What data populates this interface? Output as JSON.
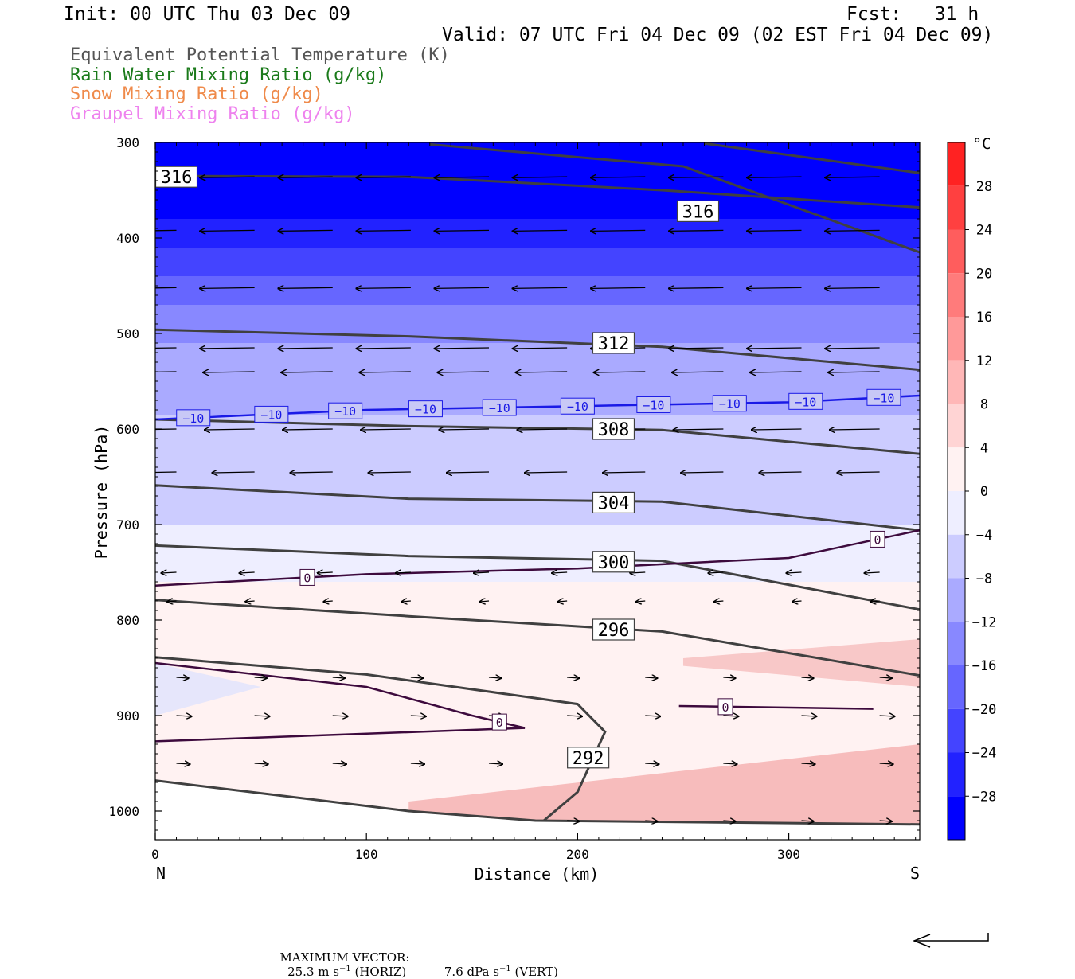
{
  "header": {
    "init": "Init: 00 UTC Thu 03 Dec 09",
    "fcst": "Fcst:   31 h",
    "valid": "Valid: 07 UTC Fri 04 Dec 09 (02 EST Fri 04 Dec 09)"
  },
  "legend": [
    {
      "label": "Equivalent Potential Temperature (K)",
      "color": "#555555"
    },
    {
      "label": "Rain Water Mixing Ratio (g/kg)",
      "color": "#1a7a1a"
    },
    {
      "label": "Snow Mixing Ratio (g/kg)",
      "color": "#ef8a4a"
    },
    {
      "label": "Graupel Mixing Ratio (g/kg)",
      "color": "#ee82ee"
    }
  ],
  "chart_data": {
    "type": "cross-section",
    "xlabel": "Distance (km)",
    "ylabel": "Pressure (hPa)",
    "x_ticks": [
      "0",
      "100",
      "200",
      "300"
    ],
    "x_end_labels": {
      "left": "N",
      "right": "S"
    },
    "y_ticks": [
      "300",
      "400",
      "500",
      "600",
      "700",
      "800",
      "900",
      "1000"
    ],
    "xlim": [
      0,
      362
    ],
    "ylim": [
      300,
      1030
    ],
    "y_inverted": true,
    "colorbar": {
      "unit": "°C",
      "labels": [
        "28",
        "24",
        "20",
        "16",
        "12",
        "8",
        "4",
        "0",
        "−4",
        "−8",
        "−12",
        "−16",
        "−20",
        "−24",
        "−28"
      ],
      "range": [
        -32,
        32
      ],
      "step": 4
    },
    "theta_e_contours": [
      {
        "label": "316",
        "label_pos": [
          10,
          336
        ],
        "points": [
          [
            0,
            335
          ],
          [
            120,
            336
          ],
          [
            240,
            350
          ],
          [
            362,
            368
          ]
        ]
      },
      {
        "label": "316",
        "label_pos": [
          257,
          372
        ],
        "points": [
          [
            130,
            302
          ],
          [
            250,
            325
          ],
          [
            362,
            415
          ]
        ]
      },
      {
        "label": "",
        "points": [
          [
            260,
            301
          ],
          [
            362,
            332
          ]
        ]
      },
      {
        "label": "312",
        "label_pos": [
          217,
          510
        ],
        "points": [
          [
            0,
            496
          ],
          [
            120,
            503
          ],
          [
            240,
            514
          ],
          [
            362,
            538
          ]
        ]
      },
      {
        "label": "308",
        "label_pos": [
          217,
          600
        ],
        "points": [
          [
            0,
            590
          ],
          [
            120,
            597
          ],
          [
            240,
            601
          ],
          [
            362,
            626
          ]
        ]
      },
      {
        "label": "304",
        "label_pos": [
          217,
          677
        ],
        "points": [
          [
            0,
            659
          ],
          [
            120,
            673
          ],
          [
            240,
            676
          ],
          [
            362,
            706
          ]
        ]
      },
      {
        "label": "300",
        "label_pos": [
          217,
          739
        ],
        "points": [
          [
            0,
            722
          ],
          [
            120,
            733
          ],
          [
            240,
            738
          ],
          [
            362,
            789
          ]
        ]
      },
      {
        "label": "296",
        "label_pos": [
          217,
          810
        ],
        "points": [
          [
            0,
            779
          ],
          [
            120,
            796
          ],
          [
            240,
            812
          ],
          [
            362,
            858
          ]
        ]
      },
      {
        "label": "292",
        "label_pos": [
          205,
          944
        ],
        "points": [
          [
            0,
            839
          ],
          [
            100,
            857
          ],
          [
            200,
            888
          ],
          [
            213,
            917
          ],
          [
            200,
            980
          ],
          [
            184,
            1010
          ]
        ]
      },
      {
        "label": "",
        "points": [
          [
            0,
            968
          ],
          [
            120,
            1000
          ],
          [
            180,
            1010
          ],
          [
            362,
            1014
          ]
        ]
      }
    ],
    "isotherms": [
      {
        "value": "−10",
        "label_x": [
          18,
          55,
          90,
          128,
          163,
          200,
          236,
          272,
          308,
          345
        ],
        "points": [
          [
            0,
            590
          ],
          [
            100,
            580
          ],
          [
            200,
            576
          ],
          [
            300,
            572
          ],
          [
            362,
            565
          ]
        ]
      },
      {
        "value": "0",
        "label_x": [
          72,
          342
        ],
        "points": [
          [
            0,
            764
          ],
          [
            100,
            752
          ],
          [
            200,
            746
          ],
          [
            300,
            735
          ],
          [
            362,
            706
          ]
        ]
      },
      {
        "value": "0",
        "label_x": [
          163
        ],
        "points": [
          [
            0,
            845
          ],
          [
            100,
            870
          ],
          [
            150,
            900
          ],
          [
            175,
            913
          ]
        ]
      },
      {
        "value": "0",
        "label_x": [],
        "points": [
          [
            0,
            927
          ],
          [
            175,
            913
          ]
        ]
      },
      {
        "value": "0",
        "label_x": [
          270
        ],
        "points": [
          [
            248,
            890
          ],
          [
            340,
            893
          ]
        ]
      }
    ],
    "maximum_vector": {
      "horizontal": "25.3",
      "horizontal_unit": "m s",
      "vertical": "7.6",
      "vertical_unit": "dPa s",
      "exponent": "−1"
    }
  },
  "footer": {
    "prefix": "MAXIMUM VECTOR:",
    "horiz_value": "25.3 m s",
    "horiz_suffix": " (HORIZ)",
    "vert_value": "7.6 dPa s",
    "vert_suffix": " (VERT)",
    "exponent": "−1"
  }
}
